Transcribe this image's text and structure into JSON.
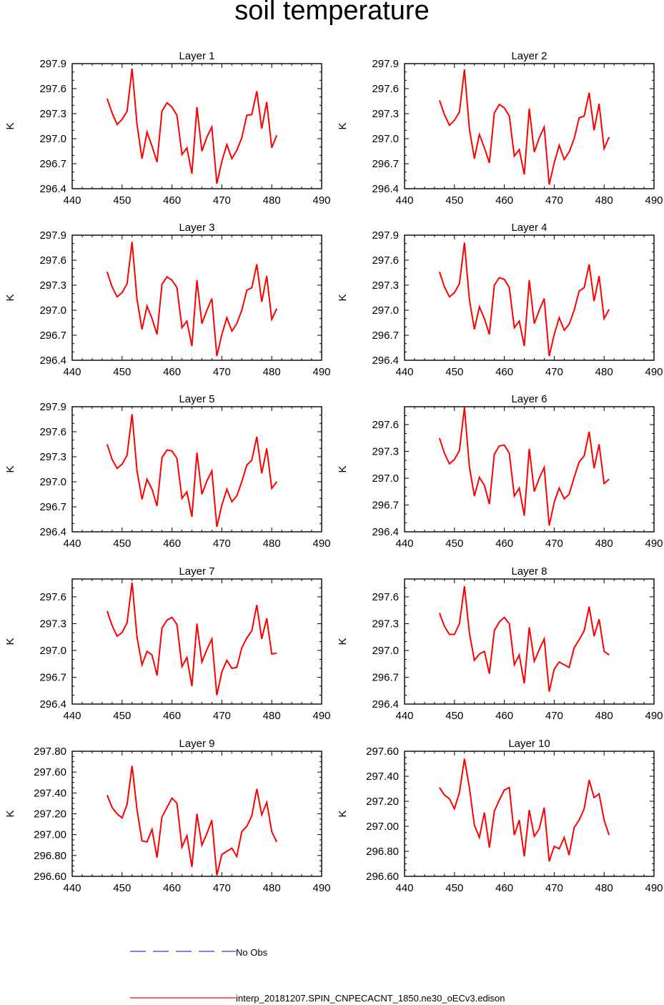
{
  "title": "soil temperature",
  "legend": {
    "no_obs": "No Obs",
    "model": "interp_20181207.SPIN_CNPECACNT_1850.ne30_oECv3.edison",
    "no_obs_color": "#0000ff",
    "model_color": "#ff0000"
  },
  "chart_data": [
    {
      "type": "line",
      "title": "Layer 1",
      "ylabel": "K",
      "xlim": [
        440,
        490
      ],
      "xticks": [
        "440",
        "450",
        "460",
        "470",
        "480",
        "490"
      ],
      "ylim": [
        296.4,
        297.9
      ],
      "yticks": [
        "297.9",
        "297.6",
        "297.3",
        "297.0",
        "296.7",
        "296.4"
      ],
      "x": [
        447,
        448,
        449,
        450,
        451,
        452,
        453,
        454,
        455,
        456,
        457,
        458,
        459,
        460,
        461,
        462,
        463,
        464,
        465,
        466,
        467,
        468,
        469,
        470,
        471,
        472,
        473,
        474,
        475,
        476,
        477,
        478,
        479,
        480,
        481
      ],
      "values": [
        297.48,
        297.31,
        297.17,
        297.23,
        297.33,
        297.84,
        297.17,
        296.76,
        297.08,
        296.91,
        296.72,
        297.33,
        297.43,
        297.38,
        297.28,
        296.81,
        296.89,
        296.58,
        297.38,
        296.85,
        297.02,
        297.14,
        296.46,
        296.73,
        296.93,
        296.76,
        296.86,
        297.01,
        297.28,
        297.29,
        297.57,
        297.12,
        297.44,
        296.89,
        297.04
      ]
    },
    {
      "type": "line",
      "title": "Layer 2",
      "ylabel": "K",
      "xlim": [
        440,
        490
      ],
      "xticks": [
        "440",
        "450",
        "460",
        "470",
        "480",
        "490"
      ],
      "ylim": [
        296.4,
        297.9
      ],
      "yticks": [
        "297.9",
        "297.6",
        "297.3",
        "297.0",
        "296.7",
        "296.4"
      ],
      "x": [
        447,
        448,
        449,
        450,
        451,
        452,
        453,
        454,
        455,
        456,
        457,
        458,
        459,
        460,
        461,
        462,
        463,
        464,
        465,
        466,
        467,
        468,
        469,
        470,
        471,
        472,
        473,
        474,
        475,
        476,
        477,
        478,
        479,
        480,
        481
      ],
      "values": [
        297.46,
        297.29,
        297.16,
        297.22,
        297.32,
        297.83,
        297.12,
        296.76,
        297.05,
        296.89,
        296.71,
        297.31,
        297.41,
        297.37,
        297.27,
        296.79,
        296.87,
        296.57,
        297.36,
        296.84,
        297.01,
        297.14,
        296.45,
        296.71,
        296.92,
        296.75,
        296.84,
        297.0,
        297.25,
        297.27,
        297.55,
        297.1,
        297.42,
        296.88,
        297.02
      ]
    },
    {
      "type": "line",
      "title": "Layer 3",
      "ylabel": "K",
      "xlim": [
        440,
        490
      ],
      "xticks": [
        "440",
        "450",
        "460",
        "470",
        "480",
        "490"
      ],
      "ylim": [
        296.4,
        297.9
      ],
      "yticks": [
        "297.9",
        "297.6",
        "297.3",
        "297.0",
        "296.7",
        "296.4"
      ],
      "x": [
        447,
        448,
        449,
        450,
        451,
        452,
        453,
        454,
        455,
        456,
        457,
        458,
        459,
        460,
        461,
        462,
        463,
        464,
        465,
        466,
        467,
        468,
        469,
        470,
        471,
        472,
        473,
        474,
        475,
        476,
        477,
        478,
        479,
        480,
        481
      ],
      "values": [
        297.46,
        297.28,
        297.16,
        297.21,
        297.32,
        297.82,
        297.13,
        296.77,
        297.05,
        296.9,
        296.71,
        297.31,
        297.4,
        297.36,
        297.27,
        296.79,
        296.87,
        296.57,
        297.36,
        296.84,
        297.0,
        297.14,
        296.45,
        296.71,
        296.91,
        296.75,
        296.84,
        297.0,
        297.24,
        297.27,
        297.55,
        297.1,
        297.41,
        296.89,
        297.02
      ]
    },
    {
      "type": "line",
      "title": "Layer 4",
      "ylabel": "K",
      "xlim": [
        440,
        490
      ],
      "xticks": [
        "440",
        "450",
        "460",
        "470",
        "480",
        "490"
      ],
      "ylim": [
        296.4,
        297.9
      ],
      "yticks": [
        "297.9",
        "297.6",
        "297.3",
        "297.0",
        "296.7",
        "296.4"
      ],
      "x": [
        447,
        448,
        449,
        450,
        451,
        452,
        453,
        454,
        455,
        456,
        457,
        458,
        459,
        460,
        461,
        462,
        463,
        464,
        465,
        466,
        467,
        468,
        469,
        470,
        471,
        472,
        473,
        474,
        475,
        476,
        477,
        478,
        479,
        480,
        481
      ],
      "values": [
        297.46,
        297.28,
        297.16,
        297.21,
        297.32,
        297.81,
        297.13,
        296.77,
        297.04,
        296.9,
        296.71,
        297.3,
        297.39,
        297.37,
        297.27,
        296.79,
        296.87,
        296.57,
        297.36,
        296.84,
        297.0,
        297.14,
        296.45,
        296.71,
        296.91,
        296.76,
        296.83,
        297.0,
        297.23,
        297.27,
        297.55,
        297.11,
        297.41,
        296.9,
        297.01
      ]
    },
    {
      "type": "line",
      "title": "Layer 5",
      "ylabel": "K",
      "xlim": [
        440,
        490
      ],
      "xticks": [
        "440",
        "450",
        "460",
        "470",
        "480",
        "490"
      ],
      "ylim": [
        296.4,
        297.9
      ],
      "yticks": [
        "297.9",
        "297.6",
        "297.3",
        "297.0",
        "296.7",
        "296.4"
      ],
      "x": [
        447,
        448,
        449,
        450,
        451,
        452,
        453,
        454,
        455,
        456,
        457,
        458,
        459,
        460,
        461,
        462,
        463,
        464,
        465,
        466,
        467,
        468,
        469,
        470,
        471,
        472,
        473,
        474,
        475,
        476,
        477,
        478,
        479,
        480,
        481
      ],
      "values": [
        297.45,
        297.27,
        297.16,
        297.21,
        297.32,
        297.81,
        297.13,
        296.79,
        297.03,
        296.91,
        296.71,
        297.29,
        297.38,
        297.37,
        297.28,
        296.8,
        296.88,
        296.58,
        297.35,
        296.85,
        297.01,
        297.13,
        296.46,
        296.72,
        296.91,
        296.76,
        296.83,
        297.0,
        297.2,
        297.26,
        297.54,
        297.1,
        297.4,
        296.92,
        297.0
      ]
    },
    {
      "type": "line",
      "title": "Layer 6",
      "ylabel": "K",
      "xlim": [
        440,
        490
      ],
      "xticks": [
        "440",
        "450",
        "460",
        "470",
        "480",
        "490"
      ],
      "ylim": [
        296.4,
        297.8
      ],
      "yticks": [
        "297.6",
        "297.3",
        "297.0",
        "296.7",
        "296.4"
      ],
      "x": [
        447,
        448,
        449,
        450,
        451,
        452,
        453,
        454,
        455,
        456,
        457,
        458,
        459,
        460,
        461,
        462,
        463,
        464,
        465,
        466,
        467,
        468,
        469,
        470,
        471,
        472,
        473,
        474,
        475,
        476,
        477,
        478,
        479,
        480,
        481
      ],
      "values": [
        297.45,
        297.28,
        297.16,
        297.21,
        297.31,
        297.79,
        297.13,
        296.8,
        297.01,
        296.92,
        296.71,
        297.27,
        297.36,
        297.37,
        297.28,
        296.8,
        296.89,
        296.58,
        297.33,
        296.85,
        297.0,
        297.12,
        296.47,
        296.73,
        296.89,
        296.77,
        296.82,
        297.01,
        297.18,
        297.25,
        297.52,
        297.11,
        297.38,
        296.94,
        296.99
      ]
    },
    {
      "type": "line",
      "title": "Layer 7",
      "ylabel": "K",
      "xlim": [
        440,
        490
      ],
      "xticks": [
        "440",
        "450",
        "460",
        "470",
        "480",
        "490"
      ],
      "ylim": [
        296.4,
        297.8
      ],
      "yticks": [
        "297.6",
        "297.3",
        "297.0",
        "296.7",
        "296.4"
      ],
      "x": [
        447,
        448,
        449,
        450,
        451,
        452,
        453,
        454,
        455,
        456,
        457,
        458,
        459,
        460,
        461,
        462,
        463,
        464,
        465,
        466,
        467,
        468,
        469,
        470,
        471,
        472,
        473,
        474,
        475,
        476,
        477,
        478,
        479,
        480,
        481
      ],
      "values": [
        297.44,
        297.28,
        297.16,
        297.2,
        297.31,
        297.76,
        297.15,
        296.84,
        296.99,
        296.95,
        296.72,
        297.25,
        297.34,
        297.37,
        297.29,
        296.82,
        296.92,
        296.6,
        297.3,
        296.87,
        297.01,
        297.13,
        296.5,
        296.76,
        296.89,
        296.8,
        296.81,
        297.03,
        297.14,
        297.22,
        297.51,
        297.13,
        297.36,
        296.96,
        296.97
      ]
    },
    {
      "type": "line",
      "title": "Layer 8",
      "ylabel": "K",
      "xlim": [
        440,
        490
      ],
      "xticks": [
        "440",
        "450",
        "460",
        "470",
        "480",
        "490"
      ],
      "ylim": [
        296.4,
        297.8
      ],
      "yticks": [
        "297.6",
        "297.3",
        "297.0",
        "296.7",
        "296.4"
      ],
      "x": [
        447,
        448,
        449,
        450,
        451,
        452,
        453,
        454,
        455,
        456,
        457,
        458,
        459,
        460,
        461,
        462,
        463,
        464,
        465,
        466,
        467,
        468,
        469,
        470,
        471,
        472,
        473,
        474,
        475,
        476,
        477,
        478,
        479,
        480,
        481
      ],
      "values": [
        297.42,
        297.27,
        297.18,
        297.18,
        297.3,
        297.72,
        297.2,
        296.89,
        296.96,
        296.99,
        296.74,
        297.22,
        297.32,
        297.37,
        297.3,
        296.84,
        296.95,
        296.63,
        297.26,
        296.88,
        297.01,
        297.13,
        296.54,
        296.79,
        296.87,
        296.84,
        296.81,
        297.03,
        297.12,
        297.22,
        297.49,
        297.16,
        297.35,
        296.99,
        296.95
      ]
    },
    {
      "type": "line",
      "title": "Layer 9",
      "ylabel": "K",
      "xlim": [
        440,
        490
      ],
      "xticks": [
        "440",
        "450",
        "460",
        "470",
        "480",
        "490"
      ],
      "ylim": [
        296.6,
        297.8
      ],
      "yticks": [
        "297.80",
        "297.60",
        "297.40",
        "297.20",
        "297.00",
        "296.80",
        "296.60"
      ],
      "x": [
        447,
        448,
        449,
        450,
        451,
        452,
        453,
        454,
        455,
        456,
        457,
        458,
        459,
        460,
        461,
        462,
        463,
        464,
        465,
        466,
        467,
        468,
        469,
        470,
        471,
        472,
        473,
        474,
        475,
        476,
        477,
        478,
        479,
        480,
        481
      ],
      "values": [
        297.38,
        297.26,
        297.2,
        297.16,
        297.29,
        297.66,
        297.24,
        296.94,
        296.93,
        297.05,
        296.78,
        297.17,
        297.26,
        297.35,
        297.3,
        296.88,
        296.99,
        296.69,
        297.2,
        296.9,
        297.01,
        297.14,
        296.61,
        296.81,
        296.84,
        296.87,
        296.79,
        297.03,
        297.08,
        297.18,
        297.44,
        297.19,
        297.31,
        297.03,
        296.93
      ]
    },
    {
      "type": "line",
      "title": "Layer 10",
      "ylabel": "K",
      "xlim": [
        440,
        490
      ],
      "xticks": [
        "440",
        "450",
        "460",
        "470",
        "480",
        "490"
      ],
      "ylim": [
        296.6,
        297.6
      ],
      "yticks": [
        "297.60",
        "297.40",
        "297.20",
        "297.00",
        "296.80",
        "296.60"
      ],
      "x": [
        447,
        448,
        449,
        450,
        451,
        452,
        453,
        454,
        455,
        456,
        457,
        458,
        459,
        460,
        461,
        462,
        463,
        464,
        465,
        466,
        467,
        468,
        469,
        470,
        471,
        472,
        473,
        474,
        475,
        476,
        477,
        478,
        479,
        480,
        481
      ],
      "values": [
        297.31,
        297.25,
        297.22,
        297.14,
        297.27,
        297.54,
        297.31,
        297.01,
        296.91,
        297.11,
        296.83,
        297.12,
        297.21,
        297.29,
        297.31,
        296.93,
        297.05,
        296.76,
        297.13,
        296.92,
        296.98,
        297.15,
        296.72,
        296.84,
        296.82,
        296.91,
        296.77,
        296.99,
        297.05,
        297.14,
        297.37,
        297.23,
        297.26,
        297.05,
        296.93
      ]
    }
  ]
}
